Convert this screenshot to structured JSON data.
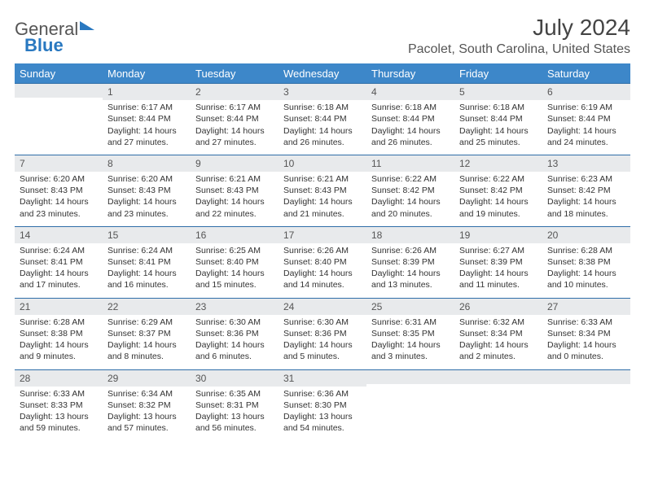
{
  "logo": {
    "line1": "General",
    "line2": "Blue"
  },
  "title": "July 2024",
  "location": "Pacolet, South Carolina, United States",
  "colors": {
    "header_bg": "#3d87c9",
    "header_text": "#ffffff",
    "daynum_bg": "#e8eaec",
    "rule": "#2f6ea8",
    "body_text": "#333333"
  },
  "font": {
    "family": "Arial",
    "body_size_pt": 8,
    "title_size_pt": 21,
    "location_size_pt": 12
  },
  "weekday_labels": [
    "Sunday",
    "Monday",
    "Tuesday",
    "Wednesday",
    "Thursday",
    "Friday",
    "Saturday"
  ],
  "weeks": [
    [
      {
        "num": "",
        "sunrise": "",
        "sunset": "",
        "daylight": ""
      },
      {
        "num": "1",
        "sunrise": "Sunrise: 6:17 AM",
        "sunset": "Sunset: 8:44 PM",
        "daylight": "Daylight: 14 hours and 27 minutes."
      },
      {
        "num": "2",
        "sunrise": "Sunrise: 6:17 AM",
        "sunset": "Sunset: 8:44 PM",
        "daylight": "Daylight: 14 hours and 27 minutes."
      },
      {
        "num": "3",
        "sunrise": "Sunrise: 6:18 AM",
        "sunset": "Sunset: 8:44 PM",
        "daylight": "Daylight: 14 hours and 26 minutes."
      },
      {
        "num": "4",
        "sunrise": "Sunrise: 6:18 AM",
        "sunset": "Sunset: 8:44 PM",
        "daylight": "Daylight: 14 hours and 26 minutes."
      },
      {
        "num": "5",
        "sunrise": "Sunrise: 6:18 AM",
        "sunset": "Sunset: 8:44 PM",
        "daylight": "Daylight: 14 hours and 25 minutes."
      },
      {
        "num": "6",
        "sunrise": "Sunrise: 6:19 AM",
        "sunset": "Sunset: 8:44 PM",
        "daylight": "Daylight: 14 hours and 24 minutes."
      }
    ],
    [
      {
        "num": "7",
        "sunrise": "Sunrise: 6:20 AM",
        "sunset": "Sunset: 8:43 PM",
        "daylight": "Daylight: 14 hours and 23 minutes."
      },
      {
        "num": "8",
        "sunrise": "Sunrise: 6:20 AM",
        "sunset": "Sunset: 8:43 PM",
        "daylight": "Daylight: 14 hours and 23 minutes."
      },
      {
        "num": "9",
        "sunrise": "Sunrise: 6:21 AM",
        "sunset": "Sunset: 8:43 PM",
        "daylight": "Daylight: 14 hours and 22 minutes."
      },
      {
        "num": "10",
        "sunrise": "Sunrise: 6:21 AM",
        "sunset": "Sunset: 8:43 PM",
        "daylight": "Daylight: 14 hours and 21 minutes."
      },
      {
        "num": "11",
        "sunrise": "Sunrise: 6:22 AM",
        "sunset": "Sunset: 8:42 PM",
        "daylight": "Daylight: 14 hours and 20 minutes."
      },
      {
        "num": "12",
        "sunrise": "Sunrise: 6:22 AM",
        "sunset": "Sunset: 8:42 PM",
        "daylight": "Daylight: 14 hours and 19 minutes."
      },
      {
        "num": "13",
        "sunrise": "Sunrise: 6:23 AM",
        "sunset": "Sunset: 8:42 PM",
        "daylight": "Daylight: 14 hours and 18 minutes."
      }
    ],
    [
      {
        "num": "14",
        "sunrise": "Sunrise: 6:24 AM",
        "sunset": "Sunset: 8:41 PM",
        "daylight": "Daylight: 14 hours and 17 minutes."
      },
      {
        "num": "15",
        "sunrise": "Sunrise: 6:24 AM",
        "sunset": "Sunset: 8:41 PM",
        "daylight": "Daylight: 14 hours and 16 minutes."
      },
      {
        "num": "16",
        "sunrise": "Sunrise: 6:25 AM",
        "sunset": "Sunset: 8:40 PM",
        "daylight": "Daylight: 14 hours and 15 minutes."
      },
      {
        "num": "17",
        "sunrise": "Sunrise: 6:26 AM",
        "sunset": "Sunset: 8:40 PM",
        "daylight": "Daylight: 14 hours and 14 minutes."
      },
      {
        "num": "18",
        "sunrise": "Sunrise: 6:26 AM",
        "sunset": "Sunset: 8:39 PM",
        "daylight": "Daylight: 14 hours and 13 minutes."
      },
      {
        "num": "19",
        "sunrise": "Sunrise: 6:27 AM",
        "sunset": "Sunset: 8:39 PM",
        "daylight": "Daylight: 14 hours and 11 minutes."
      },
      {
        "num": "20",
        "sunrise": "Sunrise: 6:28 AM",
        "sunset": "Sunset: 8:38 PM",
        "daylight": "Daylight: 14 hours and 10 minutes."
      }
    ],
    [
      {
        "num": "21",
        "sunrise": "Sunrise: 6:28 AM",
        "sunset": "Sunset: 8:38 PM",
        "daylight": "Daylight: 14 hours and 9 minutes."
      },
      {
        "num": "22",
        "sunrise": "Sunrise: 6:29 AM",
        "sunset": "Sunset: 8:37 PM",
        "daylight": "Daylight: 14 hours and 8 minutes."
      },
      {
        "num": "23",
        "sunrise": "Sunrise: 6:30 AM",
        "sunset": "Sunset: 8:36 PM",
        "daylight": "Daylight: 14 hours and 6 minutes."
      },
      {
        "num": "24",
        "sunrise": "Sunrise: 6:30 AM",
        "sunset": "Sunset: 8:36 PM",
        "daylight": "Daylight: 14 hours and 5 minutes."
      },
      {
        "num": "25",
        "sunrise": "Sunrise: 6:31 AM",
        "sunset": "Sunset: 8:35 PM",
        "daylight": "Daylight: 14 hours and 3 minutes."
      },
      {
        "num": "26",
        "sunrise": "Sunrise: 6:32 AM",
        "sunset": "Sunset: 8:34 PM",
        "daylight": "Daylight: 14 hours and 2 minutes."
      },
      {
        "num": "27",
        "sunrise": "Sunrise: 6:33 AM",
        "sunset": "Sunset: 8:34 PM",
        "daylight": "Daylight: 14 hours and 0 minutes."
      }
    ],
    [
      {
        "num": "28",
        "sunrise": "Sunrise: 6:33 AM",
        "sunset": "Sunset: 8:33 PM",
        "daylight": "Daylight: 13 hours and 59 minutes."
      },
      {
        "num": "29",
        "sunrise": "Sunrise: 6:34 AM",
        "sunset": "Sunset: 8:32 PM",
        "daylight": "Daylight: 13 hours and 57 minutes."
      },
      {
        "num": "30",
        "sunrise": "Sunrise: 6:35 AM",
        "sunset": "Sunset: 8:31 PM",
        "daylight": "Daylight: 13 hours and 56 minutes."
      },
      {
        "num": "31",
        "sunrise": "Sunrise: 6:36 AM",
        "sunset": "Sunset: 8:30 PM",
        "daylight": "Daylight: 13 hours and 54 minutes."
      },
      {
        "num": "",
        "sunrise": "",
        "sunset": "",
        "daylight": ""
      },
      {
        "num": "",
        "sunrise": "",
        "sunset": "",
        "daylight": ""
      },
      {
        "num": "",
        "sunrise": "",
        "sunset": "",
        "daylight": ""
      }
    ]
  ]
}
